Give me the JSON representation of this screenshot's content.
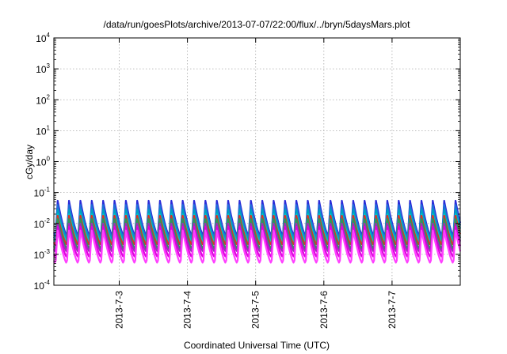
{
  "chart_data": {
    "type": "line",
    "title": "/data/run/goesPlots/archive/2013-07-07/22:00/flux/../bryn/5daysMars.plot",
    "xlabel": "Coordinated Universal Time (UTC)",
    "ylabel": "cGy/day",
    "yscale": "log",
    "ylim": [
      0.0001,
      10000
    ],
    "y_ticks": [
      {
        "base": "10",
        "exp": "-4",
        "value": 0.0001
      },
      {
        "base": "10",
        "exp": "-3",
        "value": 0.001
      },
      {
        "base": "10",
        "exp": "-2",
        "value": 0.01
      },
      {
        "base": "10",
        "exp": "-1",
        "value": 0.1
      },
      {
        "base": "10",
        "exp": "0",
        "value": 1
      },
      {
        "base": "10",
        "exp": "1",
        "value": 10
      },
      {
        "base": "10",
        "exp": "2",
        "value": 100
      },
      {
        "base": "10",
        "exp": "3",
        "value": 1000
      },
      {
        "base": "10",
        "exp": "4",
        "value": 10000
      }
    ],
    "xlim": [
      "2013-07-02 01:00",
      "2013-07-08 00:00"
    ],
    "x_ticks": [
      {
        "label": "2013-7-3",
        "value": "2013-07-03"
      },
      {
        "label": "2013-7-4",
        "value": "2013-07-04"
      },
      {
        "label": "2013-7-5",
        "value": "2013-07-05"
      },
      {
        "label": "2013-7-6",
        "value": "2013-07-06"
      },
      {
        "label": "2013-7-7",
        "value": "2013-07-07"
      }
    ],
    "grid": true,
    "series": [
      {
        "color": "#2a2ad8",
        "peak": 0.055,
        "trough": 0.004
      },
      {
        "color": "#1f6fd8",
        "peak": 0.04,
        "trough": 0.0035
      },
      {
        "color": "#00a0c0",
        "peak": 0.028,
        "trough": 0.003
      },
      {
        "color": "#00c8c8",
        "peak": 0.02,
        "trough": 0.0025
      },
      {
        "color": "#e03020",
        "peak": 0.018,
        "trough": 0.002
      },
      {
        "color": "#2a9a5a",
        "peak": 0.014,
        "trough": 0.0015
      },
      {
        "color": "#9a30b8",
        "peak": 0.01,
        "trough": 0.0012
      },
      {
        "color": "#e000e0",
        "peak": 0.008,
        "trough": 0.0008
      },
      {
        "color": "#ff40ff",
        "peak": 0.006,
        "trough": 0.0005
      }
    ],
    "cycles_per_day": 6
  }
}
